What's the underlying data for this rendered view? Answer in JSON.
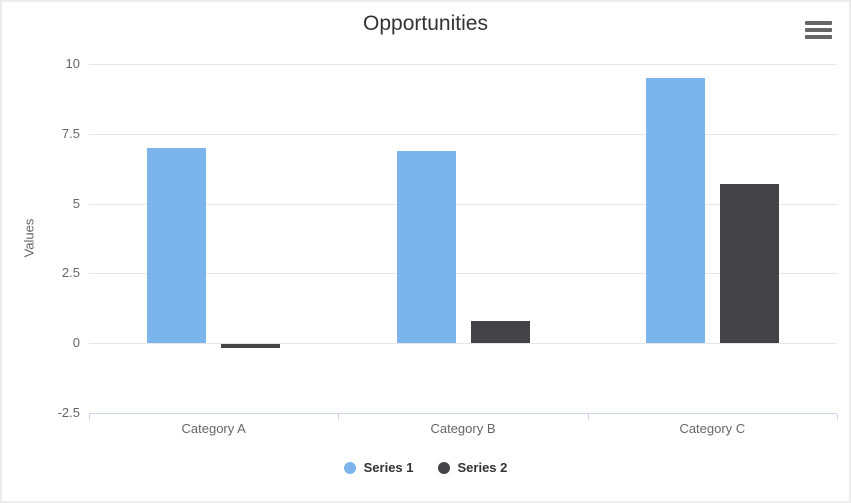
{
  "header": {
    "title": "Opportunities"
  },
  "icons": {
    "context_menu": "hamburger-icon"
  },
  "chart_data": {
    "type": "bar",
    "title": "Opportunities",
    "categories": [
      "Category A",
      "Category B",
      "Category C"
    ],
    "series": [
      {
        "name": "Series 1",
        "color": "#7cb5ec",
        "values": [
          7.0,
          6.9,
          9.5
        ]
      },
      {
        "name": "Series 2",
        "color": "#434348",
        "values": [
          -0.15,
          0.8,
          5.7
        ]
      }
    ],
    "xlabel": "",
    "ylabel": "Values",
    "ylim": [
      -2.5,
      10
    ],
    "yticks": [
      -2.5,
      0,
      2.5,
      5,
      7.5,
      10
    ],
    "grid": true,
    "legend_position": "bottom",
    "axis_line_color": "#ccd6eb",
    "grid_color": "#e6e6e6",
    "tick_text_color": "#666666"
  }
}
